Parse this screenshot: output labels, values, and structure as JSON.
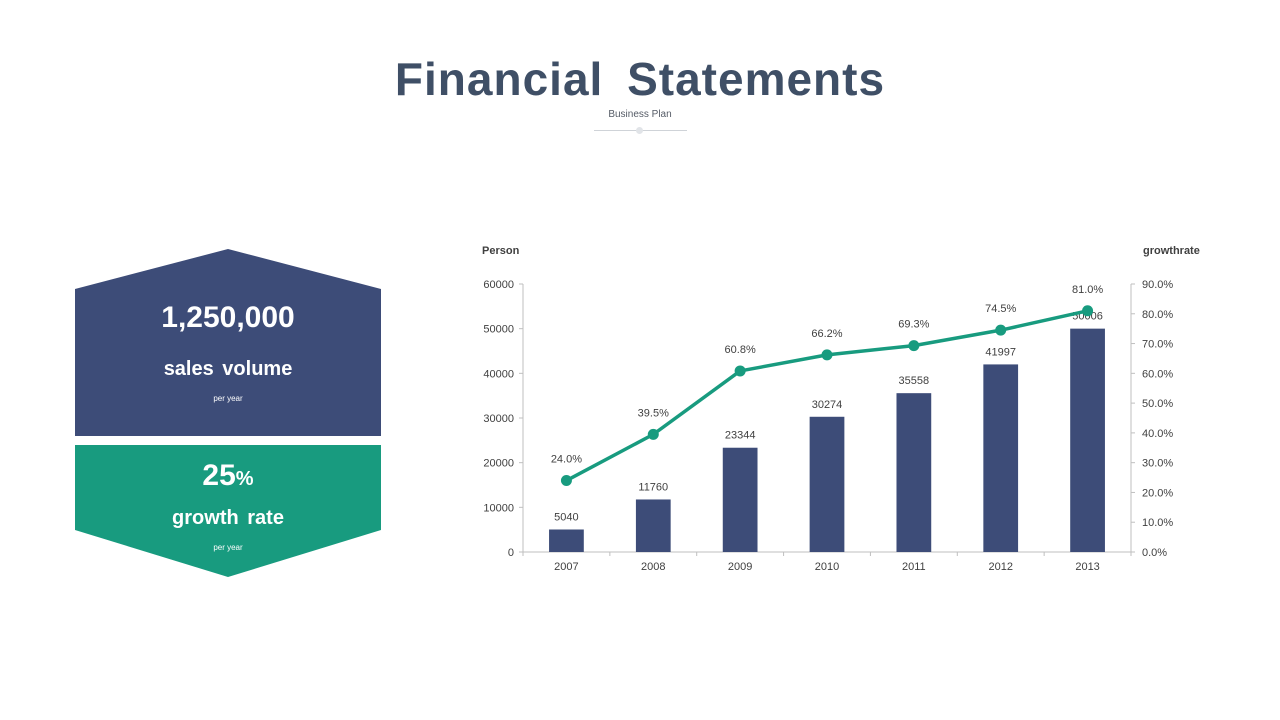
{
  "header": {
    "title": "Financial  Statements",
    "subtitle": "Business Plan"
  },
  "cards": {
    "sales": {
      "value": "1,250,000",
      "label": "sales volume",
      "period": "per year",
      "color": "#3d4c78"
    },
    "growth": {
      "value": "25",
      "unit": "%",
      "label": "growth rate",
      "period": "per year",
      "color": "#189b7f"
    }
  },
  "colors": {
    "title": "#3f4f66",
    "bar": "#3d4c78",
    "line": "#189b7f",
    "axis": "#bfbfbf",
    "text": "#404040"
  },
  "chart_data": {
    "type": "bar",
    "title": "",
    "categories": [
      "2007",
      "2008",
      "2009",
      "2010",
      "2011",
      "2012",
      "2013"
    ],
    "ylabel": "Person",
    "y2label": "growthrate",
    "ylim": [
      0,
      60000
    ],
    "yticks": [
      0,
      10000,
      20000,
      30000,
      40000,
      50000,
      60000
    ],
    "y2lim": [
      0,
      0.9
    ],
    "y2ticks": [
      "0.0%",
      "10.0%",
      "20.0%",
      "30.0%",
      "40.0%",
      "50.0%",
      "60.0%",
      "70.0%",
      "80.0%",
      "90.0%"
    ],
    "grid": false,
    "legend": "none",
    "series": [
      {
        "type": "bar",
        "axis": "left",
        "values": [
          5040,
          11760,
          23344,
          30274,
          35558,
          41997,
          50006
        ]
      },
      {
        "type": "line",
        "axis": "right",
        "values": [
          0.24,
          0.395,
          0.608,
          0.662,
          0.693,
          0.745,
          0.81
        ],
        "labels": [
          "24.0%",
          "39.5%",
          "60.8%",
          "66.2%",
          "69.3%",
          "74.5%",
          "81.0%"
        ]
      }
    ]
  }
}
